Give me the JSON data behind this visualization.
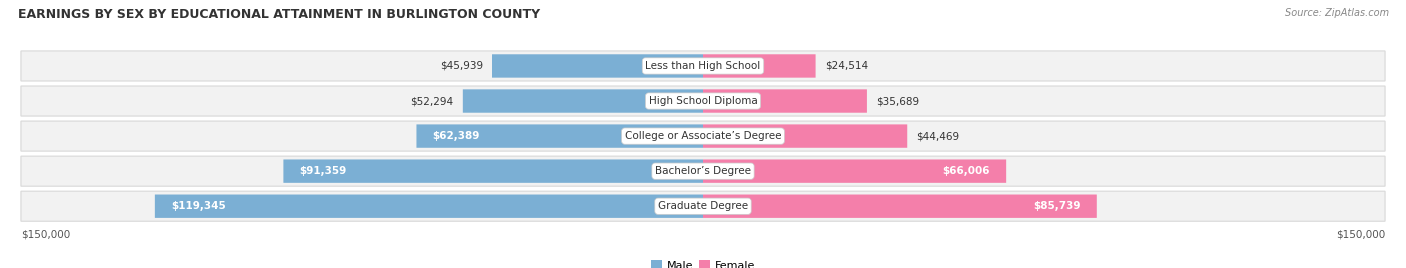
{
  "title": "EARNINGS BY SEX BY EDUCATIONAL ATTAINMENT IN BURLINGTON COUNTY",
  "source": "Source: ZipAtlas.com",
  "categories": [
    "Less than High School",
    "High School Diploma",
    "College or Associate’s Degree",
    "Bachelor’s Degree",
    "Graduate Degree"
  ],
  "male_values": [
    45939,
    52294,
    62389,
    91359,
    119345
  ],
  "female_values": [
    24514,
    35689,
    44469,
    66006,
    85739
  ],
  "male_color": "#7bafd4",
  "female_color": "#f47faa",
  "male_label": "Male",
  "female_label": "Female",
  "max_val": 150000,
  "background_color": "#ffffff",
  "row_bg_color": "#f2f2f2",
  "row_border_color": "#d8d8d8"
}
